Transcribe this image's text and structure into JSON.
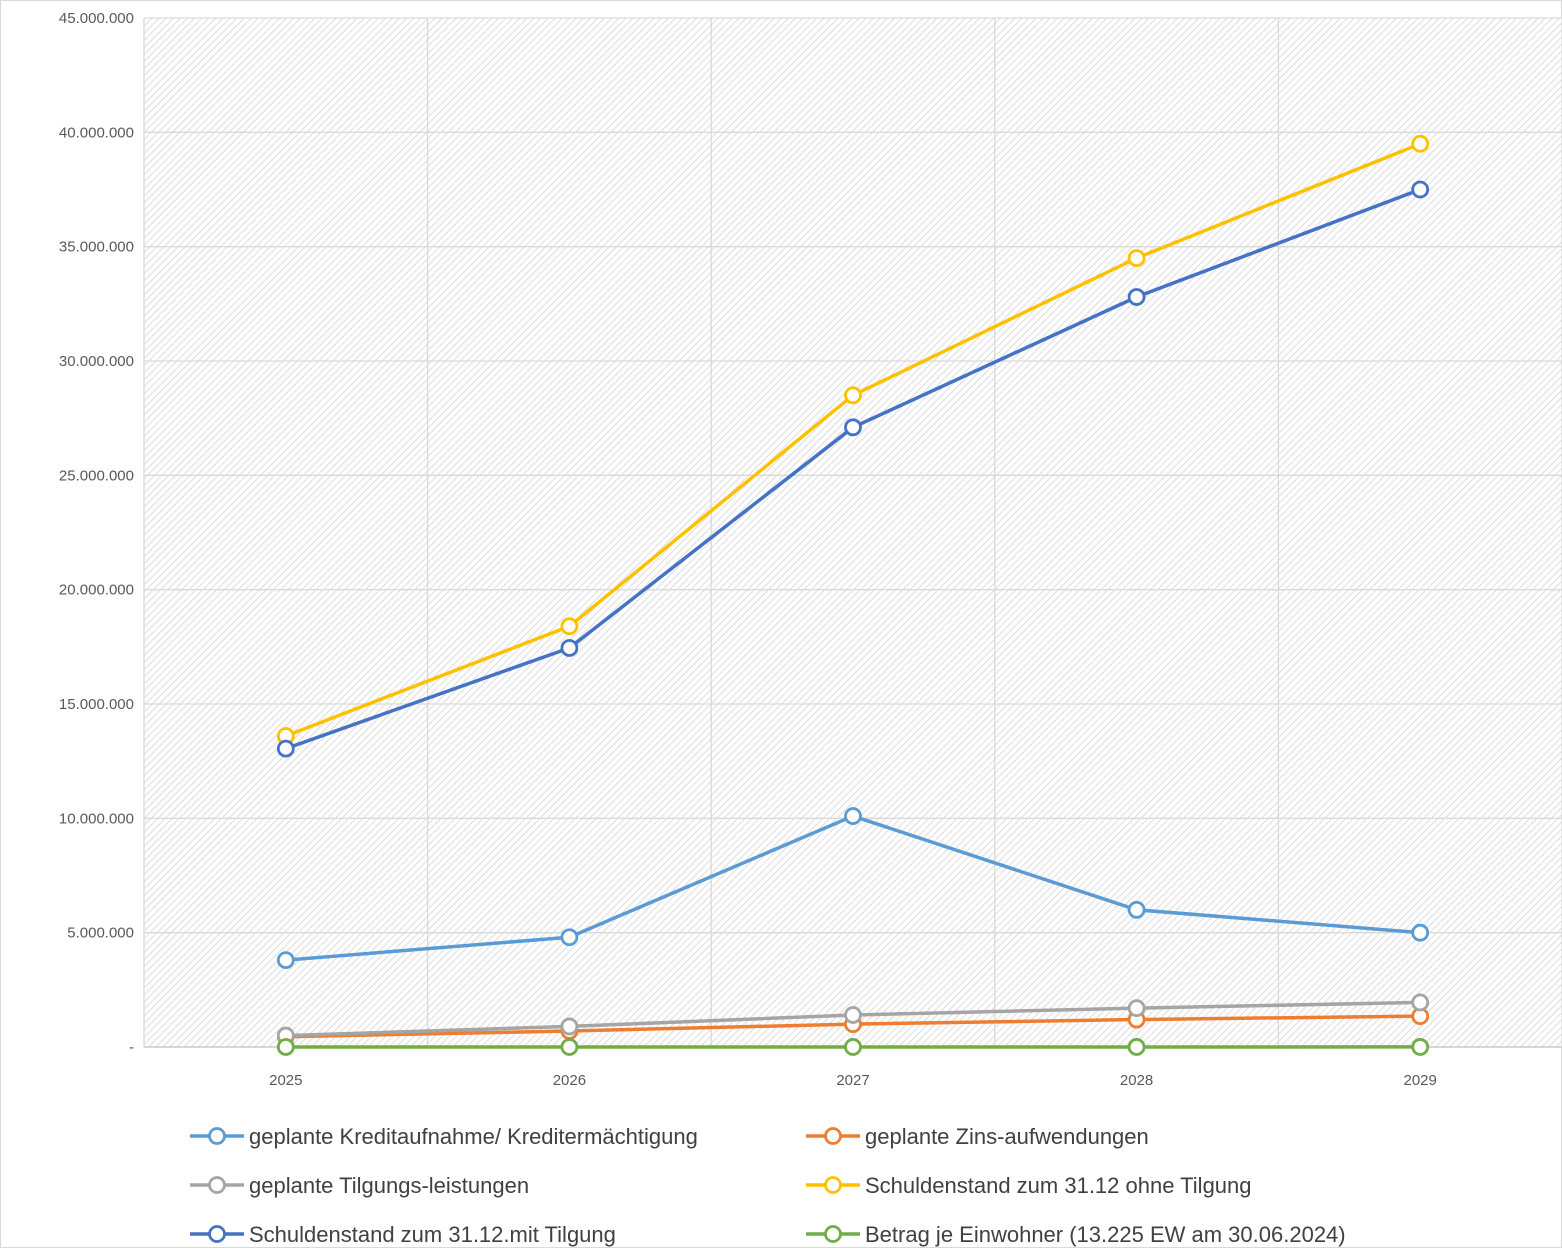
{
  "chart_data": {
    "type": "line",
    "categories": [
      "2025",
      "2026",
      "2027",
      "2028",
      "2029"
    ],
    "ylim": [
      0,
      45000000
    ],
    "y_ticks": [
      0,
      5000000,
      10000000,
      15000000,
      20000000,
      25000000,
      30000000,
      35000000,
      40000000,
      45000000
    ],
    "y_tick_labels": [
      "-",
      "5.000.000",
      "10.000.000",
      "15.000.000",
      "20.000.000",
      "25.000.000",
      "30.000.000",
      "35.000.000",
      "40.000.000",
      "45.000.000"
    ],
    "grid": true,
    "legend_position": "bottom",
    "series": [
      {
        "name": "geplante Kreditaufnahme/ Kreditermächtigung",
        "color": "#5B9BD5",
        "values": [
          3800000,
          4800000,
          10100000,
          6000000,
          5000000
        ]
      },
      {
        "name": "geplante Zins-aufwendungen",
        "color": "#ED7D31",
        "values": [
          450000,
          700000,
          1000000,
          1200000,
          1350000
        ]
      },
      {
        "name": "geplante Tilgungs-leistungen",
        "color": "#A5A5A5",
        "values": [
          500000,
          900000,
          1400000,
          1700000,
          1950000
        ]
      },
      {
        "name": "Schuldenstand zum 31.12 ohne Tilgung",
        "color": "#FFC000",
        "values": [
          13600000,
          18400000,
          28500000,
          34500000,
          39500000
        ]
      },
      {
        "name": "Schuldenstand zum 31.12.mit Tilgung",
        "color": "#4472C4",
        "values": [
          13050000,
          17450000,
          27100000,
          32800000,
          37500000
        ]
      },
      {
        "name": "Betrag je Einwohner (13.225 EW am 30.06.2024)",
        "color": "#70AD47",
        "values": [
          1000,
          1300,
          2000,
          2500,
          2800
        ]
      }
    ]
  }
}
